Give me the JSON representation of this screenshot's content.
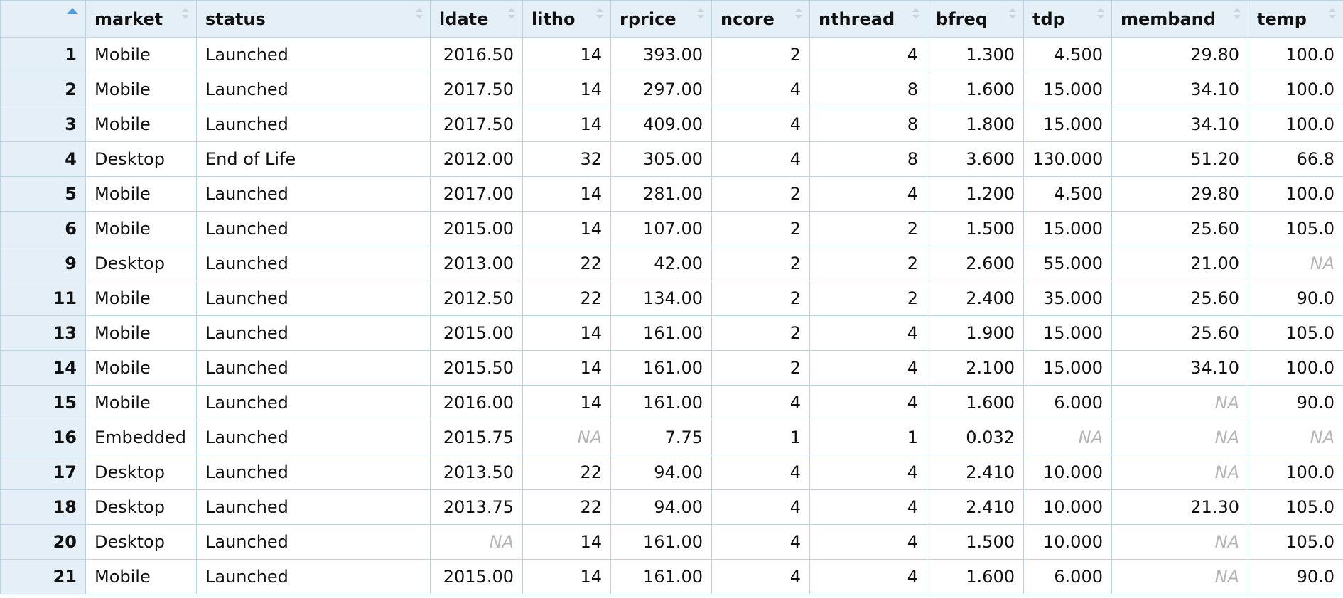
{
  "columns": [
    "",
    "market",
    "status",
    "ldate",
    "litho",
    "rprice",
    "ncore",
    "nthread",
    "bfreq",
    "tdp",
    "memband",
    "temp"
  ],
  "sort": {
    "column": "rownum",
    "direction": "ascending"
  },
  "rows": [
    [
      "1",
      "Mobile",
      "Launched",
      "2016.50",
      "14",
      "393.00",
      "2",
      "4",
      "1.300",
      "4.500",
      "29.80",
      "100.0"
    ],
    [
      "2",
      "Mobile",
      "Launched",
      "2017.50",
      "14",
      "297.00",
      "4",
      "8",
      "1.600",
      "15.000",
      "34.10",
      "100.0"
    ],
    [
      "3",
      "Mobile",
      "Launched",
      "2017.50",
      "14",
      "409.00",
      "4",
      "8",
      "1.800",
      "15.000",
      "34.10",
      "100.0"
    ],
    [
      "4",
      "Desktop",
      "End of Life",
      "2012.00",
      "32",
      "305.00",
      "4",
      "8",
      "3.600",
      "130.000",
      "51.20",
      "66.8"
    ],
    [
      "5",
      "Mobile",
      "Launched",
      "2017.00",
      "14",
      "281.00",
      "2",
      "4",
      "1.200",
      "4.500",
      "29.80",
      "100.0"
    ],
    [
      "6",
      "Mobile",
      "Launched",
      "2015.00",
      "14",
      "107.00",
      "2",
      "2",
      "1.500",
      "15.000",
      "25.60",
      "105.0"
    ],
    [
      "9",
      "Desktop",
      "Launched",
      "2013.00",
      "22",
      "42.00",
      "2",
      "2",
      "2.600",
      "55.000",
      "21.00",
      "NA"
    ],
    [
      "11",
      "Mobile",
      "Launched",
      "2012.50",
      "22",
      "134.00",
      "2",
      "2",
      "2.400",
      "35.000",
      "25.60",
      "90.0"
    ],
    [
      "13",
      "Mobile",
      "Launched",
      "2015.00",
      "14",
      "161.00",
      "2",
      "4",
      "1.900",
      "15.000",
      "25.60",
      "105.0"
    ],
    [
      "14",
      "Mobile",
      "Launched",
      "2015.50",
      "14",
      "161.00",
      "2",
      "4",
      "2.100",
      "15.000",
      "34.10",
      "100.0"
    ],
    [
      "15",
      "Mobile",
      "Launched",
      "2016.00",
      "14",
      "161.00",
      "4",
      "4",
      "1.600",
      "6.000",
      "NA",
      "90.0"
    ],
    [
      "16",
      "Embedded",
      "Launched",
      "2015.75",
      "NA",
      "7.75",
      "1",
      "1",
      "0.032",
      "NA",
      "NA",
      "NA"
    ],
    [
      "17",
      "Desktop",
      "Launched",
      "2013.50",
      "22",
      "94.00",
      "4",
      "4",
      "2.410",
      "10.000",
      "NA",
      "100.0"
    ],
    [
      "18",
      "Desktop",
      "Launched",
      "2013.75",
      "22",
      "94.00",
      "4",
      "4",
      "2.410",
      "10.000",
      "21.30",
      "105.0"
    ],
    [
      "20",
      "Desktop",
      "Launched",
      "NA",
      "14",
      "161.00",
      "4",
      "4",
      "1.500",
      "10.000",
      "NA",
      "105.0"
    ],
    [
      "21",
      "Mobile",
      "Launched",
      "2015.00",
      "14",
      "161.00",
      "4",
      "4",
      "1.600",
      "6.000",
      "NA",
      "90.0"
    ]
  ]
}
